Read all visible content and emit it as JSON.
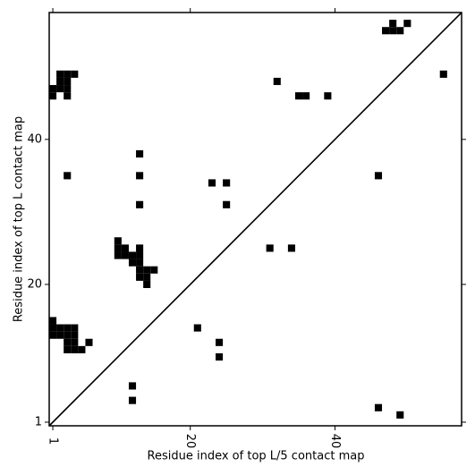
{
  "chart_data": {
    "type": "scatter",
    "x_label": "Residue index of top L/5 contact map",
    "y_label": "Residue index of top L contact map",
    "xlim": [
      0.5,
      57.5
    ],
    "ylim": [
      0.5,
      57.5
    ],
    "xticks": [
      1,
      20,
      40
    ],
    "yticks": [
      1,
      20,
      40
    ],
    "series": [
      {
        "color": "#000000",
        "x": [
          48,
          50,
          47,
          48,
          49,
          55,
          32,
          35,
          36,
          39,
          2,
          3,
          4,
          2,
          3,
          1,
          2,
          3,
          1,
          3,
          3,
          13,
          13,
          13,
          23,
          25,
          25,
          46,
          31,
          34,
          10,
          10,
          11,
          13,
          10,
          11,
          12,
          13,
          12,
          13,
          13,
          14,
          15,
          13,
          14,
          14,
          1,
          1,
          2,
          3,
          4,
          1,
          2,
          3,
          4,
          3,
          4,
          6,
          3,
          4,
          5,
          21,
          24,
          24,
          12,
          12,
          46,
          49
        ],
        "y": [
          56,
          56,
          55,
          55,
          55,
          49,
          48,
          46,
          46,
          46,
          49,
          49,
          49,
          48,
          48,
          47,
          47,
          47,
          46,
          46,
          35,
          38,
          35,
          31,
          34,
          34,
          31,
          35,
          25,
          25,
          26,
          25,
          25,
          25,
          24,
          24,
          24,
          24,
          23,
          23,
          22,
          22,
          22,
          21,
          21,
          20,
          15,
          14,
          14,
          14,
          14,
          13,
          13,
          13,
          13,
          12,
          12,
          12,
          11,
          11,
          11,
          14,
          12,
          10,
          6,
          4,
          3,
          2
        ]
      }
    ]
  }
}
